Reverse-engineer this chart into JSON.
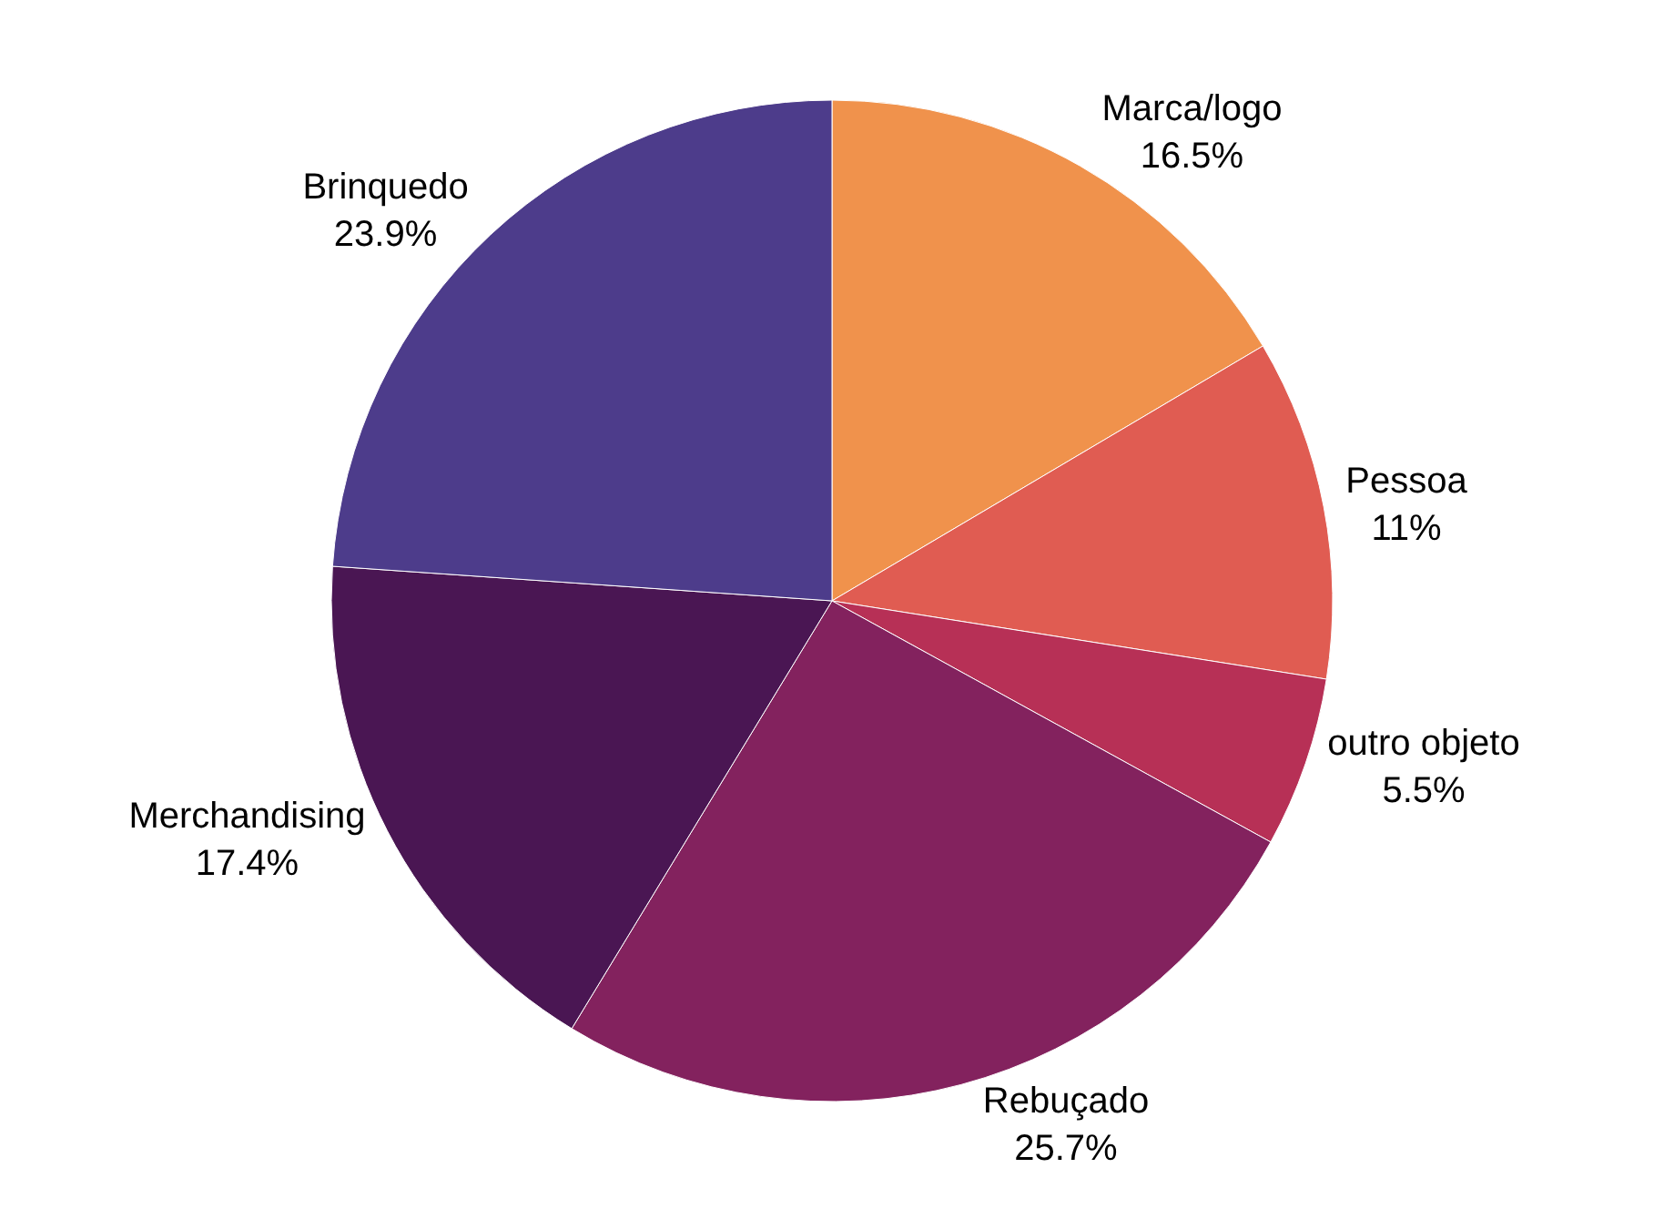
{
  "chart_data": {
    "type": "pie",
    "categories": [
      "Marca/logo",
      "Pessoa",
      "outro objeto",
      "Rebuçado",
      "Merchandising",
      "Brinquedo"
    ],
    "values": [
      16.5,
      11,
      5.5,
      25.7,
      17.4,
      23.9
    ],
    "value_labels": [
      "16.5%",
      "11%",
      "5.5%",
      "25.7%",
      "17.4%",
      "23.9%"
    ],
    "colors": [
      "#f0924c",
      "#e05c52",
      "#b73056",
      "#83225e",
      "#4a1653",
      "#4d3c8b"
    ],
    "legend": false
  }
}
